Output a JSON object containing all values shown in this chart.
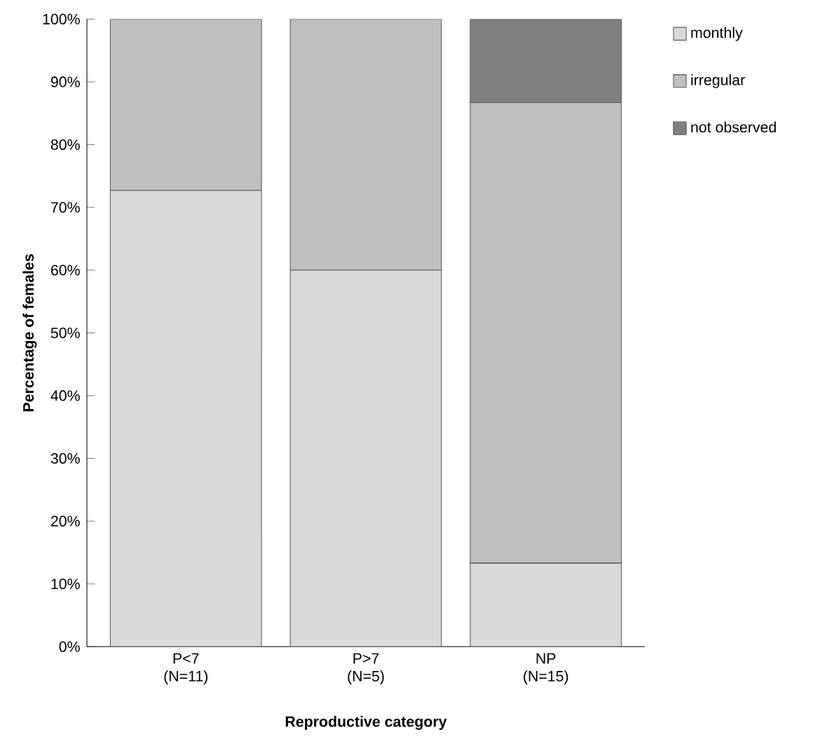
{
  "chart_data": {
    "type": "bar",
    "stacked": true,
    "categories": [
      "P<7 (N=11)",
      "P>7 (N=5)",
      "NP (N=15)"
    ],
    "xlabel": "Reproductive category",
    "ylabel": "Percentage of females",
    "series": [
      {
        "name": "monthly",
        "color": "#d9d9d9",
        "values": [
          72.7,
          60,
          13.3
        ]
      },
      {
        "name": "irregular",
        "color": "#bfbfbf",
        "values": [
          27.3,
          40,
          73.4
        ]
      },
      {
        "name": "not observed",
        "color": "#808080",
        "values": [
          0,
          0,
          13.3
        ]
      }
    ],
    "ylim": [
      0,
      100
    ],
    "yticks": [
      {
        "value": 0,
        "label": "0%"
      },
      {
        "value": 10,
        "label": "10%"
      },
      {
        "value": 20,
        "label": "20%"
      },
      {
        "value": 30,
        "label": "30%"
      },
      {
        "value": 40,
        "label": "40%"
      },
      {
        "value": 50,
        "label": "50%"
      },
      {
        "value": 60,
        "label": "60%"
      },
      {
        "value": 70,
        "label": "70%"
      },
      {
        "value": 80,
        "label": "80%"
      },
      {
        "value": 90,
        "label": "90%"
      },
      {
        "value": 100,
        "label": "100%"
      }
    ],
    "legend": "top right"
  }
}
